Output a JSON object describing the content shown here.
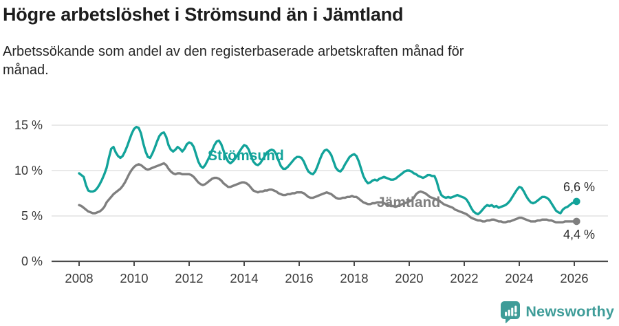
{
  "footer": {
    "brand": "Newsworthy"
  },
  "chart_data": {
    "type": "line",
    "title": "Högre arbetslöshet i Strömsund än i Jämtland",
    "subtitle": "Arbetssökande som andel av den registerbaserade arbetskraften månad för\nmånad.",
    "x_unit": "month",
    "x_start": "2008-01",
    "x_end": "2026-02",
    "x_tick_labels": [
      "2008",
      "2010",
      "2012",
      "2014",
      "2016",
      "2018",
      "2020",
      "2022",
      "2024",
      "2026"
    ],
    "y_tick_labels": [
      "0 %",
      "5 %",
      "10 %",
      "15 %"
    ],
    "ylim": [
      0,
      16
    ],
    "grid": "horizontal",
    "legend_position": "inline-labels",
    "axis_color": "#4a4a4a",
    "gridline_color": "#dcdcdc",
    "series": [
      {
        "id": "stromsund",
        "name": "Strömsund",
        "color": "#12a39a",
        "end_label": "6,6 %",
        "end_value": 6.6,
        "values": [
          9.7,
          9.5,
          9.3,
          8.4,
          7.8,
          7.7,
          7.7,
          7.8,
          8.1,
          8.5,
          9.0,
          9.6,
          10.3,
          11.4,
          12.4,
          12.6,
          12.0,
          11.6,
          11.4,
          11.6,
          12.1,
          12.7,
          13.4,
          14.1,
          14.6,
          14.8,
          14.7,
          14.1,
          13.0,
          12.1,
          11.5,
          11.4,
          11.9,
          12.5,
          13.2,
          13.8,
          14.1,
          14.2,
          13.7,
          12.8,
          12.3,
          12.1,
          12.3,
          12.6,
          12.4,
          12.1,
          12.4,
          12.9,
          13.1,
          13.0,
          12.6,
          11.8,
          11.0,
          10.5,
          10.3,
          10.6,
          11.1,
          11.6,
          12.2,
          12.8,
          13.2,
          13.3,
          12.9,
          12.2,
          11.5,
          11.0,
          10.8,
          11.0,
          11.3,
          11.7,
          12.1,
          12.5,
          12.8,
          12.7,
          12.3,
          11.6,
          11.0,
          10.7,
          10.6,
          10.8,
          11.2,
          11.6,
          12.0,
          12.2,
          12.3,
          12.2,
          11.8,
          11.1,
          10.5,
          10.2,
          10.2,
          10.4,
          10.7,
          11.0,
          11.3,
          11.5,
          11.5,
          11.4,
          11.0,
          10.4,
          9.9,
          9.7,
          9.6,
          9.9,
          10.5,
          11.2,
          11.8,
          12.2,
          12.3,
          12.1,
          11.7,
          11.0,
          10.3,
          10.0,
          9.9,
          10.2,
          10.7,
          11.1,
          11.5,
          11.7,
          11.8,
          11.6,
          11.0,
          10.2,
          9.4,
          8.9,
          8.6,
          8.7,
          8.9,
          9.0,
          8.9,
          9.1,
          9.2,
          9.3,
          9.2,
          9.1,
          9.0,
          9.0,
          9.1,
          9.3,
          9.5,
          9.7,
          9.9,
          10.0,
          10.0,
          9.9,
          9.7,
          9.6,
          9.4,
          9.3,
          9.2,
          9.3,
          9.5,
          9.5,
          9.4,
          9.4,
          8.8,
          7.9,
          7.3,
          7.1,
          7.0,
          7.1,
          7.0,
          7.1,
          7.2,
          7.3,
          7.2,
          7.1,
          7.0,
          6.8,
          6.4,
          5.9,
          5.5,
          5.3,
          5.2,
          5.4,
          5.7,
          6.0,
          6.2,
          6.1,
          6.2,
          6.0,
          6.1,
          5.9,
          6.0,
          6.1,
          6.2,
          6.4,
          6.7,
          7.1,
          7.5,
          7.9,
          8.2,
          8.1,
          7.7,
          7.2,
          6.8,
          6.5,
          6.4,
          6.5,
          6.7,
          6.9,
          7.1,
          7.1,
          7.0,
          6.8,
          6.4,
          6.0,
          5.6,
          5.4,
          5.3,
          5.7,
          5.9,
          6.0,
          6.2,
          6.4,
          6.5,
          6.6
        ]
      },
      {
        "id": "jamtland",
        "name": "Jämtland",
        "color": "#7f7f7f",
        "end_label": "4,4 %",
        "end_value": 4.4,
        "values": [
          6.2,
          6.1,
          5.9,
          5.7,
          5.5,
          5.4,
          5.3,
          5.3,
          5.4,
          5.5,
          5.7,
          6.0,
          6.5,
          6.8,
          7.1,
          7.4,
          7.6,
          7.8,
          8.0,
          8.3,
          8.7,
          9.2,
          9.7,
          10.1,
          10.4,
          10.6,
          10.7,
          10.6,
          10.4,
          10.2,
          10.1,
          10.2,
          10.3,
          10.4,
          10.5,
          10.6,
          10.7,
          10.8,
          10.6,
          10.2,
          9.9,
          9.7,
          9.6,
          9.7,
          9.7,
          9.6,
          9.6,
          9.6,
          9.6,
          9.5,
          9.3,
          9.0,
          8.7,
          8.5,
          8.4,
          8.5,
          8.7,
          8.9,
          9.1,
          9.2,
          9.2,
          9.1,
          8.9,
          8.6,
          8.4,
          8.2,
          8.2,
          8.3,
          8.4,
          8.5,
          8.6,
          8.7,
          8.7,
          8.6,
          8.4,
          8.1,
          7.8,
          7.7,
          7.6,
          7.7,
          7.7,
          7.8,
          7.8,
          7.9,
          7.9,
          7.8,
          7.7,
          7.5,
          7.4,
          7.3,
          7.3,
          7.4,
          7.4,
          7.5,
          7.5,
          7.6,
          7.6,
          7.6,
          7.5,
          7.3,
          7.1,
          7.0,
          7.0,
          7.1,
          7.2,
          7.3,
          7.4,
          7.5,
          7.6,
          7.5,
          7.4,
          7.2,
          7.0,
          6.9,
          6.9,
          7.0,
          7.0,
          7.1,
          7.1,
          7.2,
          7.1,
          7.1,
          6.9,
          6.7,
          6.5,
          6.4,
          6.3,
          6.3,
          6.4,
          6.4,
          6.5,
          6.5,
          6.5,
          6.4,
          6.3,
          6.2,
          6.1,
          6.1,
          6.0,
          6.1,
          6.2,
          6.3,
          6.4,
          6.5,
          6.6,
          6.7,
          7.0,
          7.4,
          7.6,
          7.7,
          7.6,
          7.5,
          7.3,
          7.1,
          7.0,
          6.9,
          6.8,
          6.7,
          6.5,
          6.3,
          6.2,
          6.1,
          6.0,
          5.9,
          5.7,
          5.6,
          5.5,
          5.4,
          5.3,
          5.2,
          5.0,
          4.8,
          4.7,
          4.6,
          4.5,
          4.5,
          4.4,
          4.4,
          4.5,
          4.5,
          4.6,
          4.6,
          4.5,
          4.4,
          4.4,
          4.3,
          4.3,
          4.4,
          4.4,
          4.5,
          4.6,
          4.7,
          4.8,
          4.8,
          4.7,
          4.6,
          4.5,
          4.4,
          4.4,
          4.4,
          4.5,
          4.5,
          4.6,
          4.6,
          4.6,
          4.5,
          4.5,
          4.4,
          4.3,
          4.3,
          4.3,
          4.3,
          4.4,
          4.4,
          4.4,
          4.4,
          4.4,
          4.4
        ]
      }
    ]
  }
}
